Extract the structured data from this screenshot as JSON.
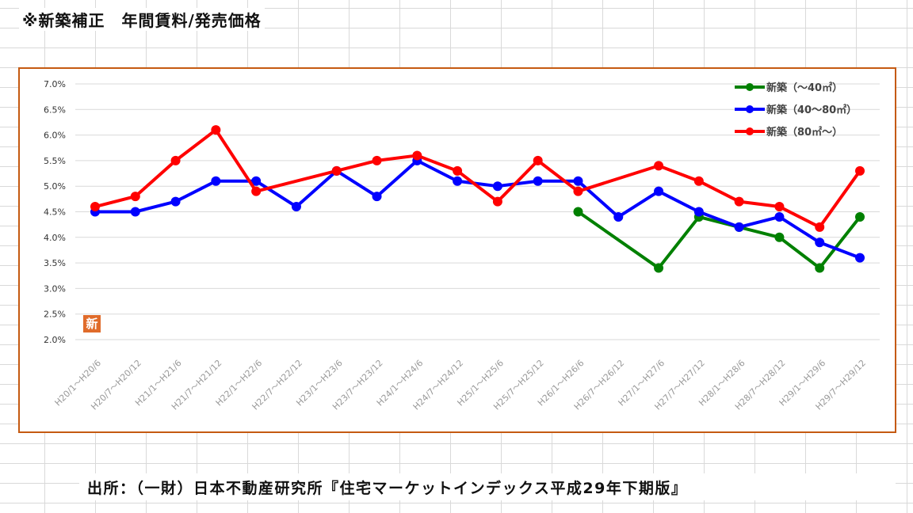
{
  "title": "※新築補正　年間賃料/発売価格",
  "footer": "出所：（一財）日本不動産研究所『住宅マーケットインデックス平成29年下期版』",
  "badge": "新",
  "chart_data": {
    "type": "line",
    "title": "",
    "xlabel": "",
    "ylabel": "",
    "ylim": [
      2.0,
      7.0
    ],
    "yticks": [
      "2.0%",
      "2.5%",
      "3.0%",
      "3.5%",
      "4.0%",
      "4.5%",
      "5.0%",
      "5.5%",
      "6.0%",
      "6.5%",
      "7.0%"
    ],
    "grid": true,
    "legend_position": "top-right",
    "categories": [
      "H20/1～H20/6",
      "H20/7～H20/12",
      "H21/1～H21/6",
      "H21/7～H21/12",
      "H22/1～H22/6",
      "H22/7～H22/12",
      "H23/1～H23/6",
      "H23/7～H23/12",
      "H24/1～H24/6",
      "H24/7～H24/12",
      "H25/1～H25/6",
      "H25/7～H25/12",
      "H26/1～H26/6",
      "H26/7～H26/12",
      "H27/1～H27/6",
      "H27/7～H27/12",
      "H28/1～H28/6",
      "H28/7～H28/12",
      "H29/1～H29/6",
      "H29/7～H29/12"
    ],
    "series": [
      {
        "name": "新築（～40㎡）",
        "color": "#008000",
        "values": [
          null,
          null,
          null,
          null,
          null,
          null,
          null,
          null,
          null,
          null,
          null,
          null,
          4.5,
          null,
          3.4,
          4.4,
          4.2,
          4.0,
          3.4,
          4.4
        ]
      },
      {
        "name": "新築（40～80㎡）",
        "color": "#0000ff",
        "values": [
          4.5,
          4.5,
          4.7,
          5.1,
          5.1,
          4.6,
          5.3,
          4.8,
          5.5,
          5.1,
          5.0,
          5.1,
          5.1,
          4.4,
          4.9,
          4.5,
          4.2,
          4.4,
          3.9,
          3.6
        ]
      },
      {
        "name": "新築（80㎡～）",
        "color": "#ff0000",
        "values": [
          4.6,
          4.8,
          5.5,
          6.1,
          4.9,
          null,
          5.3,
          5.5,
          5.6,
          5.3,
          4.7,
          5.5,
          4.9,
          null,
          5.4,
          5.1,
          4.7,
          4.6,
          4.2,
          5.3
        ]
      }
    ]
  }
}
